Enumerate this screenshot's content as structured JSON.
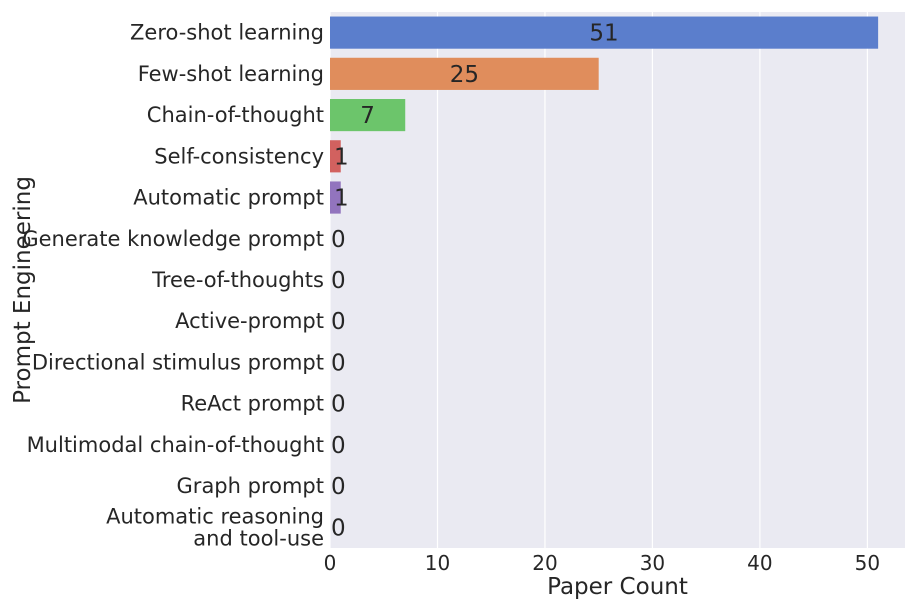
{
  "chart_data": {
    "type": "bar",
    "orientation": "horizontal",
    "categories": [
      [
        "Zero-shot learning"
      ],
      [
        "Few-shot learning"
      ],
      [
        "Chain-of-thought"
      ],
      [
        "Self-consistency"
      ],
      [
        "Automatic prompt"
      ],
      [
        "Generate knowledge prompt"
      ],
      [
        "Tree-of-thoughts"
      ],
      [
        "Active-prompt"
      ],
      [
        "Directional stimulus prompt"
      ],
      [
        "ReAct prompt"
      ],
      [
        "Multimodal chain-of-thought"
      ],
      [
        "Graph prompt"
      ],
      [
        "Automatic reasoning",
        "and tool-use"
      ]
    ],
    "values": [
      51,
      25,
      7,
      1,
      1,
      0,
      0,
      0,
      0,
      0,
      0,
      0,
      0
    ],
    "data_labels": [
      "51",
      "25",
      "7",
      "1",
      "1",
      "0",
      "0",
      "0",
      "0",
      "0",
      "0",
      "0",
      "0"
    ],
    "colors": [
      "#5b7ecc",
      "#e08d5c",
      "#6cc56b",
      "#d2615f",
      "#9274be",
      "#8c6e5a",
      "#d88cc4",
      "#8c8c8c",
      "#c8bd70",
      "#72c0d4",
      "#5b7ecc",
      "#e08d5c",
      "#6cc56b"
    ],
    "xlabel": "Paper Count",
    "ylabel": "Prompt Engineering",
    "xticks": [
      0,
      10,
      20,
      30,
      40,
      50
    ],
    "xlim": [
      0,
      53.5
    ],
    "grid": true,
    "background_color": "#eaeaf2",
    "grid_color": "#ffffff"
  }
}
